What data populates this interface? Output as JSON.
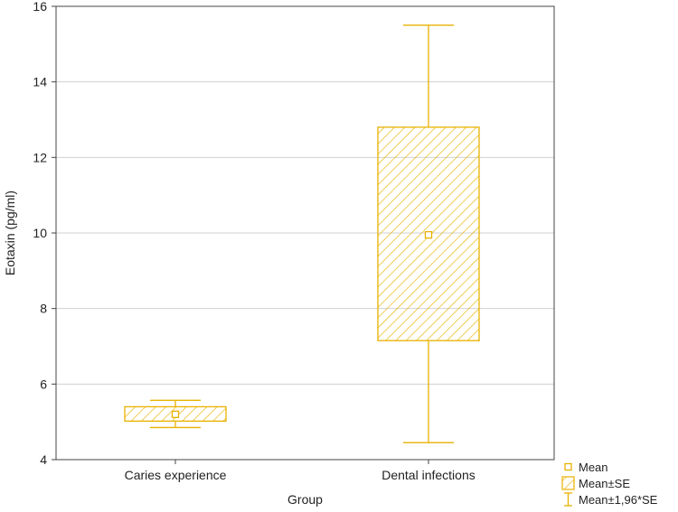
{
  "chart_data": {
    "type": "box",
    "xlabel": "Group",
    "ylabel": "Eotaxin (pg/ml)",
    "ylim": [
      4,
      16
    ],
    "yticks": [
      4,
      6,
      8,
      10,
      12,
      14,
      16
    ],
    "grid": true,
    "categories": [
      "Caries experience",
      "Dental infections"
    ],
    "boxes": [
      {
        "category": "Caries experience",
        "mean": 5.2,
        "mean_minus_se": 5.02,
        "mean_plus_se": 5.4,
        "mean_minus_1_96se": 4.85,
        "mean_plus_1_96se": 5.57
      },
      {
        "category": "Dental infections",
        "mean": 9.95,
        "mean_minus_se": 7.15,
        "mean_plus_se": 12.8,
        "mean_minus_1_96se": 4.45,
        "mean_plus_1_96se": 15.5
      }
    ],
    "legend": {
      "position": "bottom-right",
      "items": [
        {
          "label": "Mean",
          "symbol": "square"
        },
        {
          "label": "Mean±SE",
          "symbol": "hatched-box"
        },
        {
          "label": "Mean±1,96*SE",
          "symbol": "whisker"
        }
      ]
    },
    "color": "#e8b100",
    "grid_color": "#d0d0d0"
  }
}
